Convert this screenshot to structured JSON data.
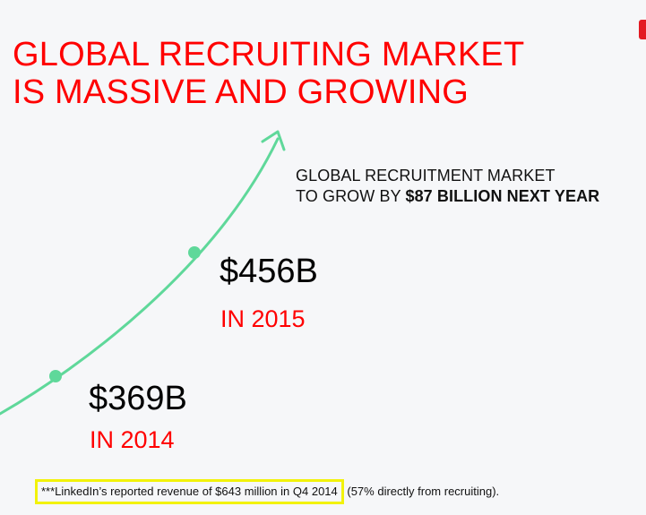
{
  "slide": {
    "title_line1": "GLOBAL RECRUITING MARKET",
    "title_line2": "IS MASSIVE AND GROWING",
    "headline": {
      "line1": "GLOBAL RECRUITMENT MARKET",
      "line2_prefix": "TO GROW BY ",
      "line2_bold": "$87 BILLION NEXT YEAR"
    },
    "points": [
      {
        "value": "$456B",
        "year": "IN 2015"
      },
      {
        "value": "$369B",
        "year": "IN 2014"
      }
    ],
    "footnote": {
      "highlighted": "***LinkedIn’s reported revenue of $643 million in Q4 2014",
      "rest": " (57% directly from recruiting)."
    }
  },
  "colors": {
    "title": "#ff0000",
    "arrow": "#5fd89a",
    "highlight_box": "#f2f20a",
    "background": "#f6f7f9",
    "corner_mark": "#e31b23"
  }
}
